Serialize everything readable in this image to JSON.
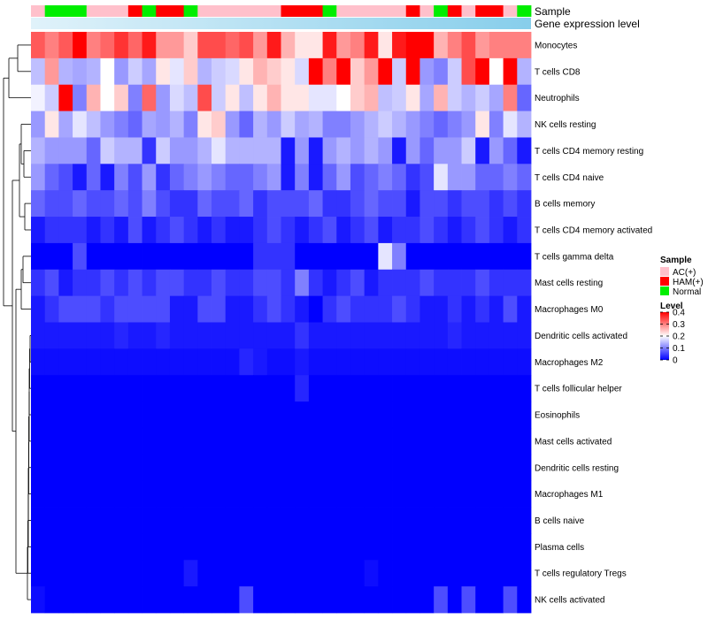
{
  "chart_data": {
    "type": "heatmap",
    "title": "",
    "annotation_tracks": [
      "Sample",
      "Gene expression level"
    ],
    "rows": [
      "Monocytes",
      "T cells CD8",
      "Neutrophils",
      "NK cells resting",
      "T cells CD4 memory resting",
      "T cells CD4 naive",
      "B cells memory",
      "T cells CD4 memory activated",
      "T cells gamma delta",
      "Mast cells resting",
      "Macrophages M0",
      "Dendritic cells activated",
      "Macrophages M2",
      "T cells follicular helper",
      "Eosinophils",
      "Mast cells activated",
      "Dendritic cells resting",
      "Macrophages M1",
      "B cells naive",
      "Plasma cells",
      "T cells regulatory  Tregs",
      "NK cells activated"
    ],
    "sample_groups": [
      "AC(+)",
      "Normal",
      "Normal",
      "Normal",
      "AC(+)",
      "AC(+)",
      "AC(+)",
      "HAM(+)",
      "Normal",
      "HAM(+)",
      "HAM(+)",
      "Normal",
      "AC(+)",
      "AC(+)",
      "AC(+)",
      "AC(+)",
      "AC(+)",
      "AC(+)",
      "HAM(+)",
      "HAM(+)",
      "HAM(+)",
      "Normal",
      "AC(+)",
      "AC(+)",
      "AC(+)",
      "AC(+)",
      "AC(+)",
      "HAM(+)",
      "AC(+)",
      "Normal",
      "HAM(+)",
      "AC(+)",
      "HAM(+)",
      "HAM(+)",
      "AC(+)",
      "Normal"
    ],
    "values": [
      [
        0.33,
        0.3,
        0.33,
        0.4,
        0.3,
        0.32,
        0.36,
        0.32,
        0.38,
        0.28,
        0.28,
        0.24,
        0.34,
        0.34,
        0.32,
        0.34,
        0.28,
        0.38,
        0.26,
        0.22,
        0.22,
        0.38,
        0.28,
        0.3,
        0.38,
        0.22,
        0.38,
        0.4,
        0.4,
        0.26,
        0.3,
        0.34,
        0.28,
        0.3,
        0.3,
        0.3
      ],
      [
        0.15,
        0.28,
        0.14,
        0.13,
        0.14,
        0.2,
        0.12,
        0.16,
        0.13,
        0.22,
        0.18,
        0.24,
        0.14,
        0.16,
        0.17,
        0.22,
        0.26,
        0.24,
        0.22,
        0.17,
        0.4,
        0.3,
        0.4,
        0.24,
        0.28,
        0.4,
        0.16,
        0.4,
        0.12,
        0.1,
        0.16,
        0.34,
        0.4,
        0.2,
        0.4,
        0.14
      ],
      [
        0.19,
        0.16,
        0.4,
        0.1,
        0.26,
        0.2,
        0.24,
        0.1,
        0.32,
        0.12,
        0.17,
        0.15,
        0.34,
        0.16,
        0.22,
        0.15,
        0.22,
        0.26,
        0.22,
        0.22,
        0.18,
        0.18,
        0.2,
        0.24,
        0.26,
        0.15,
        0.16,
        0.22,
        0.13,
        0.26,
        0.16,
        0.14,
        0.16,
        0.13,
        0.3,
        0.08
      ],
      [
        0.12,
        0.22,
        0.13,
        0.18,
        0.15,
        0.12,
        0.1,
        0.08,
        0.13,
        0.12,
        0.14,
        0.1,
        0.22,
        0.24,
        0.12,
        0.08,
        0.14,
        0.12,
        0.16,
        0.13,
        0.14,
        0.1,
        0.1,
        0.12,
        0.14,
        0.16,
        0.14,
        0.12,
        0.1,
        0.08,
        0.1,
        0.12,
        0.22,
        0.1,
        0.18,
        0.14
      ],
      [
        0.14,
        0.12,
        0.12,
        0.12,
        0.08,
        0.16,
        0.14,
        0.14,
        0.04,
        0.16,
        0.12,
        0.12,
        0.14,
        0.18,
        0.14,
        0.14,
        0.14,
        0.14,
        0.02,
        0.12,
        0.02,
        0.12,
        0.14,
        0.12,
        0.14,
        0.12,
        0.02,
        0.12,
        0.08,
        0.12,
        0.12,
        0.16,
        0.02,
        0.12,
        0.08,
        0.02
      ],
      [
        0.12,
        0.08,
        0.06,
        0.02,
        0.08,
        0.02,
        0.1,
        0.06,
        0.12,
        0.04,
        0.08,
        0.1,
        0.12,
        0.1,
        0.08,
        0.08,
        0.1,
        0.12,
        0.02,
        0.1,
        0.02,
        0.08,
        0.12,
        0.06,
        0.08,
        0.1,
        0.08,
        0.04,
        0.06,
        0.18,
        0.12,
        0.12,
        0.08,
        0.08,
        0.1,
        0.08
      ],
      [
        0.08,
        0.06,
        0.06,
        0.08,
        0.06,
        0.06,
        0.08,
        0.06,
        0.1,
        0.06,
        0.04,
        0.04,
        0.08,
        0.06,
        0.06,
        0.08,
        0.04,
        0.06,
        0.06,
        0.06,
        0.08,
        0.04,
        0.04,
        0.06,
        0.08,
        0.06,
        0.06,
        0.02,
        0.06,
        0.06,
        0.04,
        0.06,
        0.06,
        0.04,
        0.06,
        0.04
      ],
      [
        0.02,
        0.04,
        0.04,
        0.04,
        0.02,
        0.04,
        0.02,
        0.06,
        0.02,
        0.04,
        0.06,
        0.04,
        0.02,
        0.04,
        0.02,
        0.02,
        0.04,
        0.06,
        0.04,
        0.02,
        0.04,
        0.06,
        0.02,
        0.04,
        0.06,
        0.02,
        0.04,
        0.04,
        0.06,
        0.04,
        0.02,
        0.04,
        0.06,
        0.04,
        0.02,
        0.04
      ],
      [
        0.0,
        0.0,
        0.0,
        0.06,
        0.0,
        0.0,
        0.0,
        0.0,
        0.0,
        0.0,
        0.0,
        0.0,
        0.0,
        0.0,
        0.0,
        0.0,
        0.04,
        0.04,
        0.04,
        0.0,
        0.0,
        0.0,
        0.0,
        0.0,
        0.0,
        0.18,
        0.1,
        0.0,
        0.0,
        0.0,
        0.0,
        0.0,
        0.0,
        0.0,
        0.0,
        0.0
      ],
      [
        0.04,
        0.06,
        0.02,
        0.04,
        0.04,
        0.06,
        0.04,
        0.06,
        0.04,
        0.06,
        0.06,
        0.04,
        0.04,
        0.06,
        0.04,
        0.04,
        0.06,
        0.06,
        0.04,
        0.1,
        0.04,
        0.02,
        0.04,
        0.06,
        0.02,
        0.04,
        0.04,
        0.04,
        0.06,
        0.04,
        0.04,
        0.04,
        0.06,
        0.04,
        0.04,
        0.04
      ],
      [
        0.02,
        0.04,
        0.06,
        0.06,
        0.06,
        0.04,
        0.06,
        0.06,
        0.06,
        0.06,
        0.02,
        0.02,
        0.06,
        0.06,
        0.02,
        0.02,
        0.04,
        0.06,
        0.04,
        0.02,
        0.0,
        0.04,
        0.06,
        0.04,
        0.04,
        0.04,
        0.06,
        0.04,
        0.02,
        0.02,
        0.04,
        0.02,
        0.04,
        0.02,
        0.06,
        0.02
      ],
      [
        0.02,
        0.02,
        0.02,
        0.02,
        0.02,
        0.02,
        0.03,
        0.02,
        0.02,
        0.03,
        0.02,
        0.02,
        0.02,
        0.02,
        0.02,
        0.02,
        0.02,
        0.02,
        0.02,
        0.04,
        0.02,
        0.02,
        0.02,
        0.02,
        0.02,
        0.02,
        0.02,
        0.02,
        0.02,
        0.02,
        0.03,
        0.02,
        0.02,
        0.02,
        0.02,
        0.02
      ],
      [
        0.01,
        0.01,
        0.01,
        0.01,
        0.01,
        0.01,
        0.01,
        0.01,
        0.01,
        0.01,
        0.01,
        0.01,
        0.01,
        0.01,
        0.01,
        0.03,
        0.02,
        0.01,
        0.01,
        0.02,
        0.01,
        0.01,
        0.01,
        0.01,
        0.01,
        0.01,
        0.01,
        0.01,
        0.01,
        0.01,
        0.01,
        0.01,
        0.01,
        0.01,
        0.01,
        0.01
      ],
      [
        0.0,
        0.0,
        0.0,
        0.0,
        0.0,
        0.0,
        0.0,
        0.0,
        0.0,
        0.0,
        0.0,
        0.0,
        0.0,
        0.0,
        0.0,
        0.0,
        0.0,
        0.0,
        0.0,
        0.03,
        0.0,
        0.0,
        0.0,
        0.0,
        0.0,
        0.0,
        0.0,
        0.0,
        0.0,
        0.0,
        0.0,
        0.0,
        0.0,
        0.0,
        0.0,
        0.0
      ],
      [
        0.0,
        0.0,
        0.0,
        0.0,
        0.0,
        0.0,
        0.0,
        0.0,
        0.0,
        0.0,
        0.0,
        0.0,
        0.0,
        0.0,
        0.0,
        0.0,
        0.0,
        0.0,
        0.0,
        0.0,
        0.0,
        0.0,
        0.0,
        0.0,
        0.0,
        0.0,
        0.0,
        0.0,
        0.0,
        0.0,
        0.0,
        0.0,
        0.0,
        0.0,
        0.0,
        0.0
      ],
      [
        0.0,
        0.0,
        0.0,
        0.0,
        0.0,
        0.0,
        0.0,
        0.0,
        0.0,
        0.0,
        0.0,
        0.0,
        0.0,
        0.0,
        0.0,
        0.0,
        0.0,
        0.0,
        0.0,
        0.0,
        0.0,
        0.0,
        0.0,
        0.0,
        0.0,
        0.0,
        0.0,
        0.0,
        0.0,
        0.0,
        0.0,
        0.0,
        0.0,
        0.0,
        0.0,
        0.0
      ],
      [
        0.0,
        0.0,
        0.0,
        0.0,
        0.0,
        0.0,
        0.0,
        0.0,
        0.0,
        0.0,
        0.0,
        0.0,
        0.0,
        0.0,
        0.0,
        0.0,
        0.0,
        0.0,
        0.0,
        0.0,
        0.0,
        0.0,
        0.0,
        0.0,
        0.0,
        0.0,
        0.0,
        0.0,
        0.0,
        0.0,
        0.0,
        0.0,
        0.0,
        0.0,
        0.0,
        0.0
      ],
      [
        0.0,
        0.0,
        0.0,
        0.0,
        0.0,
        0.0,
        0.0,
        0.0,
        0.0,
        0.0,
        0.0,
        0.0,
        0.0,
        0.0,
        0.0,
        0.0,
        0.0,
        0.0,
        0.0,
        0.0,
        0.0,
        0.0,
        0.0,
        0.0,
        0.0,
        0.0,
        0.0,
        0.0,
        0.0,
        0.0,
        0.0,
        0.0,
        0.0,
        0.0,
        0.0,
        0.0
      ],
      [
        0.0,
        0.0,
        0.0,
        0.0,
        0.0,
        0.0,
        0.0,
        0.0,
        0.0,
        0.0,
        0.0,
        0.0,
        0.0,
        0.0,
        0.0,
        0.0,
        0.0,
        0.0,
        0.0,
        0.0,
        0.0,
        0.0,
        0.0,
        0.0,
        0.0,
        0.0,
        0.0,
        0.0,
        0.0,
        0.0,
        0.0,
        0.0,
        0.0,
        0.0,
        0.0,
        0.0
      ],
      [
        0.0,
        0.0,
        0.0,
        0.0,
        0.0,
        0.0,
        0.0,
        0.0,
        0.0,
        0.0,
        0.0,
        0.0,
        0.0,
        0.0,
        0.0,
        0.0,
        0.0,
        0.0,
        0.0,
        0.0,
        0.0,
        0.0,
        0.0,
        0.0,
        0.0,
        0.0,
        0.0,
        0.0,
        0.0,
        0.0,
        0.0,
        0.0,
        0.0,
        0.0,
        0.0,
        0.0
      ],
      [
        0.0,
        0.0,
        0.0,
        0.0,
        0.0,
        0.0,
        0.0,
        0.0,
        0.0,
        0.0,
        0.0,
        0.02,
        0.0,
        0.0,
        0.0,
        0.0,
        0.0,
        0.0,
        0.0,
        0.0,
        0.0,
        0.0,
        0.0,
        0.0,
        0.01,
        0.0,
        0.0,
        0.0,
        0.0,
        0.0,
        0.0,
        0.0,
        0.0,
        0.0,
        0.0,
        0.0
      ],
      [
        0.01,
        0.0,
        0.0,
        0.0,
        0.0,
        0.0,
        0.0,
        0.0,
        0.0,
        0.0,
        0.0,
        0.0,
        0.0,
        0.0,
        0.0,
        0.06,
        0.0,
        0.0,
        0.0,
        0.0,
        0.0,
        0.0,
        0.0,
        0.0,
        0.0,
        0.0,
        0.0,
        0.0,
        0.0,
        0.06,
        0.0,
        0.06,
        0.0,
        0.0,
        0.06,
        0.0
      ]
    ],
    "color_scale": {
      "min": 0,
      "max": 0.4,
      "low": "#0000ff",
      "mid": "#ffffff",
      "high": "#ff0000",
      "mid_value": 0.2
    },
    "legend_sample": {
      "title": "Sample",
      "entries": [
        {
          "label": "AC(+)",
          "color": "#ffc0cb"
        },
        {
          "label": "HAM(+)",
          "color": "#ff0000"
        },
        {
          "label": "Normal",
          "color": "#00ee00"
        }
      ]
    },
    "legend_level": {
      "title": "Level",
      "ticks": [
        0.4,
        0.3,
        0.2,
        0.1,
        0
      ],
      "tick_labels": [
        "0.4",
        "0.3",
        "0.2",
        "0.1",
        "0"
      ]
    },
    "gene_expression_color": "#87ceeb",
    "gene_expression_light": "#e0f2fa"
  }
}
